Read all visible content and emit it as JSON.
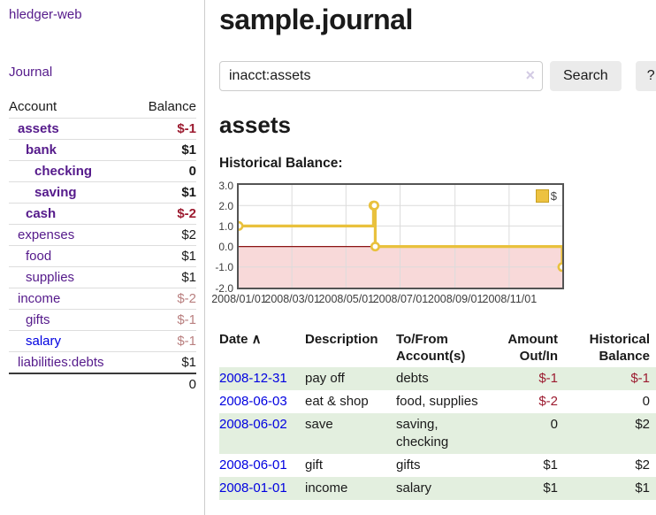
{
  "sidebar": {
    "app_title": "hledger-web",
    "journal_label": "Journal",
    "accounts_table": {
      "headers": {
        "account": "Account",
        "balance": "Balance"
      },
      "rows": [
        {
          "name": "assets",
          "balance": "$-1",
          "depth": 1,
          "bold": true,
          "balance_class": "neg-strong"
        },
        {
          "name": "bank",
          "balance": "$1",
          "depth": 2,
          "bold": true,
          "balance_class": "pos"
        },
        {
          "name": "checking",
          "balance": "0",
          "depth": 3,
          "bold": true,
          "balance_class": "pos"
        },
        {
          "name": "saving",
          "balance": "$1",
          "depth": 3,
          "bold": true,
          "balance_class": "pos"
        },
        {
          "name": "cash",
          "balance": "$-2",
          "depth": 2,
          "bold": true,
          "balance_class": "neg-strong"
        },
        {
          "name": "expenses",
          "balance": "$2",
          "depth": 1,
          "bold": false,
          "balance_class": "pos"
        },
        {
          "name": "food",
          "balance": "$1",
          "depth": 2,
          "bold": false,
          "balance_class": "pos"
        },
        {
          "name": "supplies",
          "balance": "$1",
          "depth": 2,
          "bold": false,
          "balance_class": "pos"
        },
        {
          "name": "income",
          "balance": "$-2",
          "depth": 1,
          "bold": false,
          "balance_class": "neg-soft"
        },
        {
          "name": "gifts",
          "balance": "$-1",
          "depth": 2,
          "bold": false,
          "balance_class": "neg-soft"
        },
        {
          "name": "salary",
          "balance": "$-1",
          "depth": 2,
          "bold": false,
          "balance_class": "neg-soft",
          "link_class": "blue"
        },
        {
          "name": "liabilities:debts",
          "balance": "$1",
          "depth": 1,
          "bold": false,
          "balance_class": "pos"
        }
      ],
      "total": "0"
    }
  },
  "main": {
    "title": "sample.journal",
    "search": {
      "value": "inacct:assets",
      "clear_icon": "×",
      "button_label": "Search",
      "help_label": "?"
    },
    "account_heading": "assets",
    "chart_label": "Historical Balance:"
  },
  "chart_data": {
    "type": "line",
    "step": true,
    "title": "Historical Balance",
    "x_range": [
      "2008-01-01",
      "2008-12-31"
    ],
    "ylim": [
      -2,
      3
    ],
    "y_ticks": [
      "3.0",
      "2.0",
      "1.0",
      "0.0",
      "-1.0",
      "-2.0"
    ],
    "x_ticks": [
      "2008/01/01",
      "2008/03/01",
      "2008/05/01",
      "2008/07/01",
      "2008/09/01",
      "2008/11/01"
    ],
    "series": [
      {
        "name": "$",
        "color": "#e9c13d",
        "points": [
          [
            "2008-01-01",
            1
          ],
          [
            "2008-06-01",
            2
          ],
          [
            "2008-06-02",
            2
          ],
          [
            "2008-06-03",
            0
          ],
          [
            "2008-12-31",
            -1
          ]
        ]
      }
    ],
    "legend_position": "top-right",
    "grid": true,
    "grid_color": "#dcdcdc",
    "negative_region_color": "#f8d9d9",
    "zero_line_color": "#8b1414"
  },
  "register": {
    "columns": [
      {
        "lines": [
          "Date"
        ],
        "align": "left",
        "sorted": true
      },
      {
        "lines": [
          "Description"
        ],
        "align": "left"
      },
      {
        "lines": [
          "To/From",
          "Account(s)"
        ],
        "align": "left"
      },
      {
        "lines": [
          "Amount",
          "Out/In"
        ],
        "align": "right"
      },
      {
        "lines": [
          "Historical",
          "Balance"
        ],
        "align": "right"
      }
    ],
    "sort_icon": "∧",
    "rows": [
      {
        "date": "2008-12-31",
        "description": "pay off",
        "accounts": [
          "debts"
        ],
        "amount": "$-1",
        "amount_class": "neg",
        "balance": "$-1",
        "balance_class": "neg"
      },
      {
        "date": "2008-06-03",
        "description": "eat & shop",
        "accounts": [
          "food, supplies"
        ],
        "amount": "$-2",
        "amount_class": "neg",
        "balance": "0",
        "balance_class": "pos"
      },
      {
        "date": "2008-06-02",
        "description": "save",
        "accounts": [
          "saving,",
          "checking"
        ],
        "amount": "0",
        "amount_class": "pos",
        "balance": "$2",
        "balance_class": "pos"
      },
      {
        "date": "2008-06-01",
        "description": "gift",
        "accounts": [
          "gifts"
        ],
        "amount": "$1",
        "amount_class": "pos",
        "balance": "$2",
        "balance_class": "pos"
      },
      {
        "date": "2008-01-01",
        "description": "income",
        "accounts": [
          "salary"
        ],
        "amount": "$1",
        "amount_class": "pos",
        "balance": "$1",
        "balance_class": "pos"
      }
    ]
  }
}
